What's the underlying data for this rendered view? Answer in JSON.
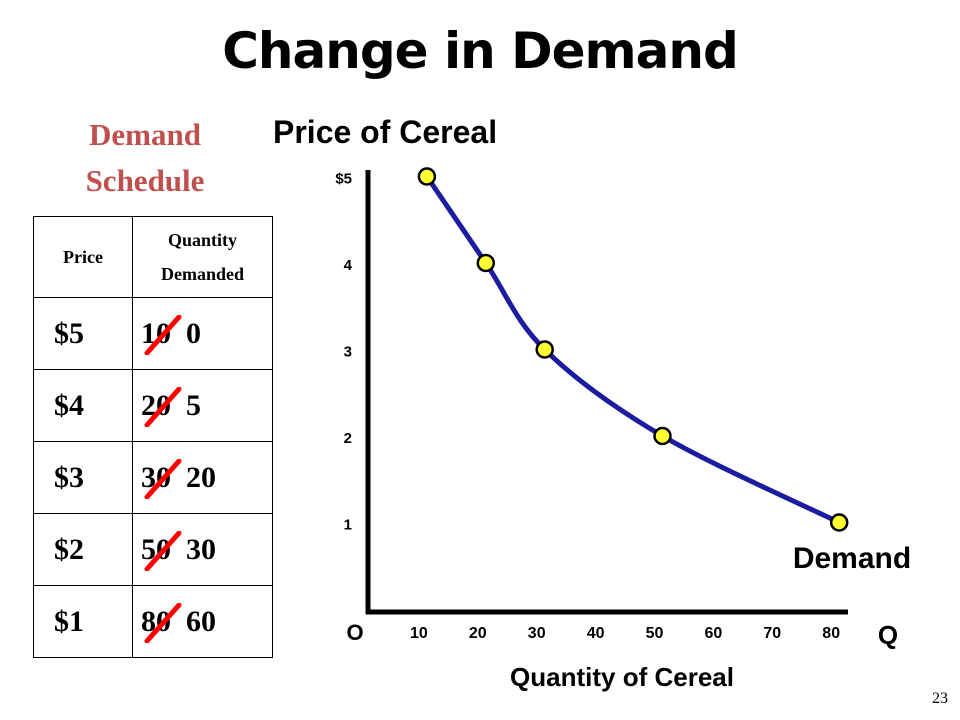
{
  "slide": {
    "title": "Change in Demand",
    "page_number": "23"
  },
  "schedule": {
    "title_line1": "Demand",
    "title_line2": "Schedule",
    "header_price": "Price",
    "header_quantity_line1": "Quantity",
    "header_quantity_line2": "Demanded",
    "rows": [
      {
        "price": "$5",
        "old_qty": "10",
        "new_qty": "0"
      },
      {
        "price": "$4",
        "old_qty": "20",
        "new_qty": "5"
      },
      {
        "price": "$3",
        "old_qty": "30",
        "new_qty": "20"
      },
      {
        "price": "$2",
        "old_qty": "50",
        "new_qty": "30"
      },
      {
        "price": "$1",
        "old_qty": "80",
        "new_qty": "60"
      }
    ],
    "strike_color": "#ff0000"
  },
  "chart_data": {
    "type": "line",
    "title": "Price of Cereal",
    "xlabel": "Quantity of Cereal",
    "x_axis_end_label": "Q",
    "origin_label": "O",
    "series": [
      {
        "name": "Demand",
        "points": [
          {
            "x": 10,
            "y": 5
          },
          {
            "x": 20,
            "y": 4
          },
          {
            "x": 30,
            "y": 3
          },
          {
            "x": 50,
            "y": 2
          },
          {
            "x": 80,
            "y": 1
          }
        ]
      }
    ],
    "x_ticks": [
      "10",
      "20",
      "30",
      "40",
      "50",
      "60",
      "70",
      "80"
    ],
    "y_ticks": [
      "1",
      "2",
      "3",
      "4",
      "$5"
    ],
    "xlim": [
      0,
      80
    ],
    "ylim": [
      0,
      5
    ],
    "grid": false,
    "colors": {
      "curve": "#1c1ca0",
      "point_fill": "#ffff33",
      "point_stroke": "#000000",
      "axis": "#000000"
    }
  }
}
